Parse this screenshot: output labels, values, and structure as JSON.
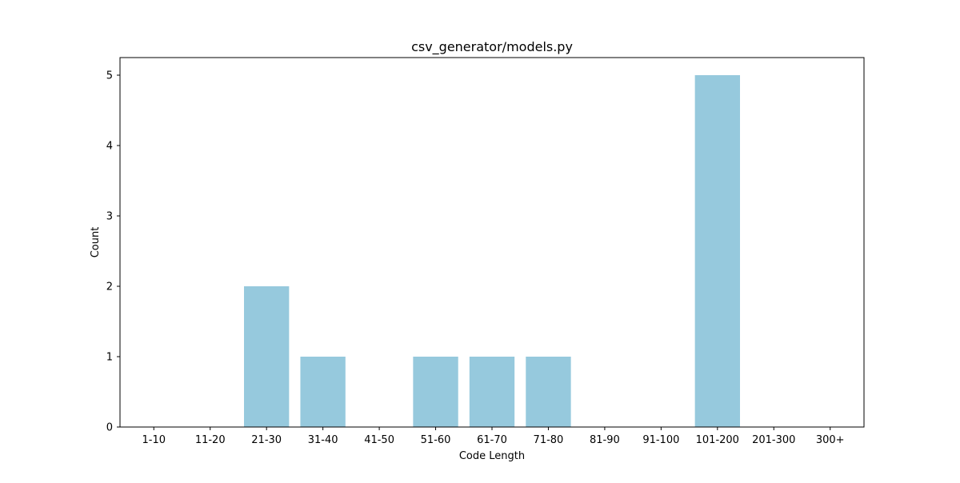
{
  "chart_data": {
    "type": "bar",
    "title": "csv_generator/models.py",
    "xlabel": "Code Length",
    "ylabel": "Count",
    "categories": [
      "1-10",
      "11-20",
      "21-30",
      "31-40",
      "41-50",
      "51-60",
      "61-70",
      "71-80",
      "81-90",
      "91-100",
      "101-200",
      "201-300",
      "300+"
    ],
    "values": [
      0,
      0,
      2,
      1,
      0,
      1,
      1,
      1,
      0,
      0,
      5,
      0,
      0
    ],
    "ylim": [
      0,
      5.25
    ],
    "yticks": [
      0,
      1,
      2,
      3,
      4,
      5
    ],
    "grid": false,
    "legend": "none",
    "bar_color": "#96c9dd"
  }
}
